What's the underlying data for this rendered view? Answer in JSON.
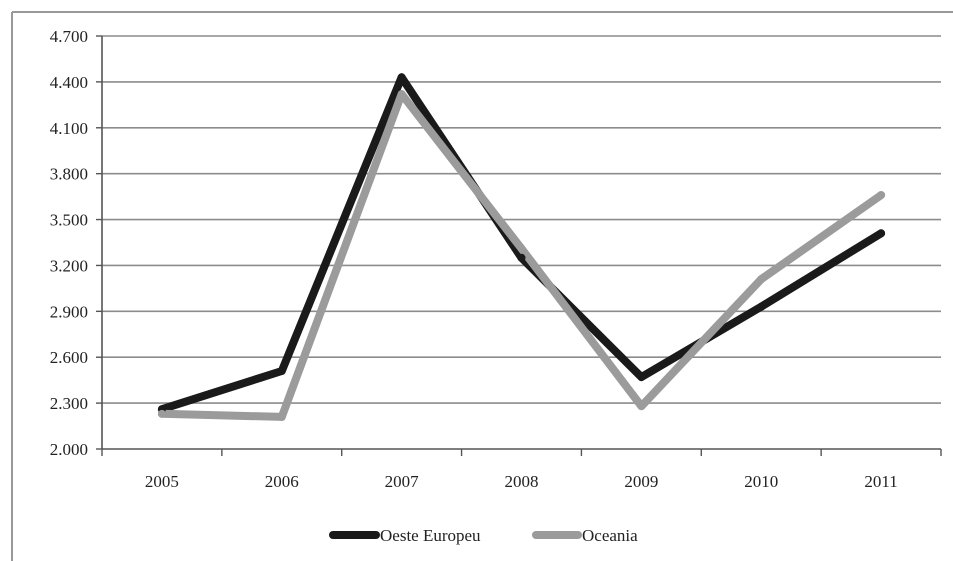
{
  "chart_data": {
    "type": "line",
    "title": "",
    "xlabel": "",
    "ylabel": "",
    "categories": [
      "2005",
      "2006",
      "2007",
      "2008",
      "2009",
      "2010",
      "2011"
    ],
    "ylim": [
      2000,
      4700
    ],
    "yticks": [
      2000,
      2300,
      2600,
      2900,
      3200,
      3500,
      3800,
      4100,
      4400,
      4700
    ],
    "ytick_labels": [
      "2.000",
      "2.300",
      "2.600",
      "2.900",
      "3.200",
      "3.500",
      "3.800",
      "4.100",
      "4.400",
      "4.700"
    ],
    "grid": "horizontal",
    "legend_position": "bottom",
    "series": [
      {
        "name": "Oeste Europeu",
        "color": "#1a1a1a",
        "values": [
          2260,
          2510,
          4430,
          3250,
          2470,
          2930,
          3410
        ]
      },
      {
        "name": "Oceania",
        "color": "#9b9b9b",
        "values": [
          2230,
          2210,
          4320,
          3310,
          2280,
          3110,
          3660
        ]
      }
    ]
  }
}
